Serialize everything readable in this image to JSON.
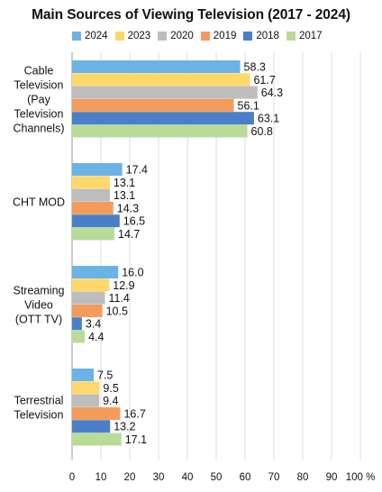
{
  "chart_data": {
    "type": "bar",
    "orientation": "horizontal",
    "title": "Main Sources of Viewing Television (2017 - 2024)",
    "categories": [
      [
        "Cable",
        "Television",
        "(Pay",
        "Television",
        "Channels)"
      ],
      [
        "CHT MOD"
      ],
      [
        "Streaming",
        "Video",
        "(OTT TV)"
      ],
      [
        "Terrestrial",
        "Television"
      ]
    ],
    "series": [
      {
        "name": "2024",
        "color": "#6BB3E6",
        "values": [
          58.3,
          17.4,
          16.0,
          7.5
        ]
      },
      {
        "name": "2023",
        "color": "#FFD86B",
        "values": [
          61.7,
          13.1,
          12.9,
          9.5
        ]
      },
      {
        "name": "2020",
        "color": "#BDBDBD",
        "values": [
          64.3,
          13.1,
          11.4,
          9.4
        ]
      },
      {
        "name": "2019",
        "color": "#F39B5B",
        "values": [
          56.1,
          14.3,
          10.5,
          16.7
        ]
      },
      {
        "name": "2018",
        "color": "#4A7FC8",
        "values": [
          63.1,
          16.5,
          3.4,
          13.2
        ]
      },
      {
        "name": "2017",
        "color": "#B8DC98",
        "values": [
          60.8,
          14.7,
          4.4,
          17.1
        ]
      }
    ],
    "xlim": [
      0,
      100
    ],
    "xticks": [
      "0",
      "10",
      "20",
      "30",
      "40",
      "50",
      "60",
      "70",
      "80",
      "90",
      "100 %"
    ],
    "grid": true,
    "legend_position": "top"
  }
}
